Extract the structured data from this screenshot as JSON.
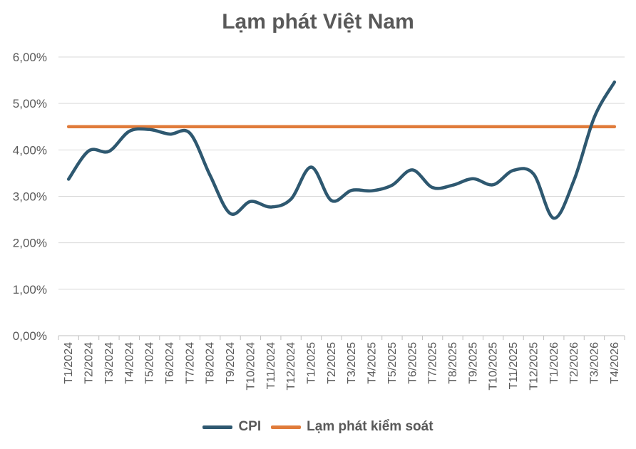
{
  "chart_data": {
    "type": "line",
    "title": "Lạm phát Việt Nam",
    "xlabel": "",
    "ylabel": "",
    "ylim": [
      0,
      6
    ],
    "y_ticks": [
      "0,00%",
      "1,00%",
      "2,00%",
      "3,00%",
      "4,00%",
      "5,00%",
      "6,00%"
    ],
    "grid": true,
    "legend_position": "bottom",
    "categories": [
      "T1/2024",
      "T2/2024",
      "T3/2024",
      "T4/2024",
      "T5/2024",
      "T6/2024",
      "T7/2024",
      "T8/2024",
      "T9/2024",
      "T10/2024",
      "T11/2024",
      "T12/2024",
      "T1/2025",
      "T2/2025",
      "T3/2025",
      "T4/2025",
      "T5/2025",
      "T6/2025",
      "T7/2025",
      "T8/2025",
      "T9/2025",
      "T10/2025",
      "T11/2025",
      "T12/2025",
      "T1/2026",
      "T2/2026",
      "T3/2026",
      "T4/2026"
    ],
    "series": [
      {
        "name": "CPI",
        "color": "#2e5870",
        "values": [
          3.37,
          3.98,
          3.97,
          4.4,
          4.44,
          4.34,
          4.36,
          3.45,
          2.63,
          2.89,
          2.77,
          2.94,
          3.63,
          2.91,
          3.13,
          3.12,
          3.24,
          3.57,
          3.19,
          3.24,
          3.38,
          3.25,
          3.56,
          3.48,
          2.53,
          3.35,
          4.7,
          5.46
        ]
      },
      {
        "name": "Lạm phát kiểm soát",
        "color": "#e07b3a",
        "values": [
          4.5,
          4.5,
          4.5,
          4.5,
          4.5,
          4.5,
          4.5,
          4.5,
          4.5,
          4.5,
          4.5,
          4.5,
          4.5,
          4.5,
          4.5,
          4.5,
          4.5,
          4.5,
          4.5,
          4.5,
          4.5,
          4.5,
          4.5,
          4.5,
          4.5,
          4.5,
          4.5,
          4.5
        ]
      }
    ]
  }
}
